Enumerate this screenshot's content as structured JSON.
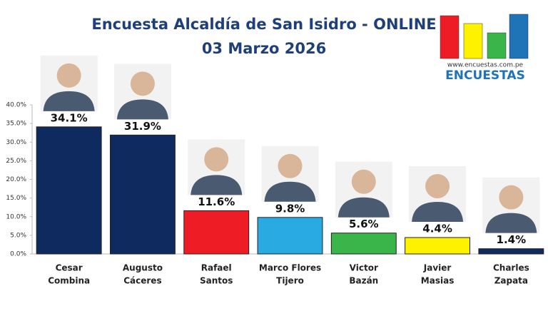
{
  "chart_data": {
    "type": "bar",
    "title": "Encuesta Alcaldía de San Isidro - ONLINE",
    "subtitle": "03 Marzo 2026",
    "categories": [
      [
        "Cesar",
        "Combina"
      ],
      [
        "Augusto",
        "Cáceres"
      ],
      [
        "Rafael",
        "Santos"
      ],
      [
        "Marco Flores",
        "Tijero"
      ],
      [
        "Victor",
        "Bazán"
      ],
      [
        "Javier",
        "Masias"
      ],
      [
        "Charles",
        "Zapata"
      ]
    ],
    "values": [
      34.1,
      31.9,
      11.6,
      9.8,
      5.6,
      4.4,
      1.4
    ],
    "value_labels": [
      "34.1%",
      "31.9%",
      "11.6%",
      "9.8%",
      "5.6%",
      "4.4%",
      "1.4%"
    ],
    "colors": [
      "#0e2a5e",
      "#0e2a5e",
      "#ee1c24",
      "#29abe2",
      "#39b54a",
      "#fff200",
      "#0e2a5e"
    ],
    "ylim": [
      0,
      40
    ],
    "yticks": [
      {
        "value": 0,
        "label": "0.0%"
      },
      {
        "value": 5,
        "label": "5.0%"
      },
      {
        "value": 10,
        "label": "10.0%"
      },
      {
        "value": 15,
        "label": "15.0%"
      },
      {
        "value": 20,
        "label": "20.0%"
      },
      {
        "value": 25,
        "label": "25.0%"
      },
      {
        "value": 30,
        "label": "30.0%"
      },
      {
        "value": 35,
        "label": "35.0%"
      },
      {
        "value": 40,
        "label": "40.0%"
      }
    ],
    "grid": false
  },
  "logo": {
    "url": "www.encuestas.com.pe",
    "name": "ENCUESTAS"
  }
}
